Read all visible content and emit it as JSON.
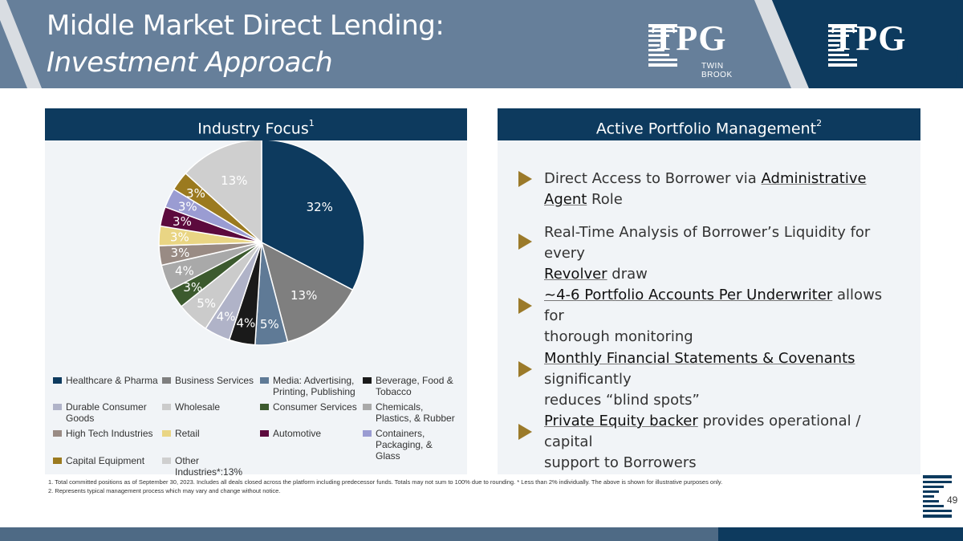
{
  "header": {
    "title_line1": "Middle Market Direct Lending:",
    "title_line2": "Investment Approach",
    "logo_left_text": "TPG",
    "logo_left_sub": "TWIN BROOK",
    "logo_right_text": "TPG"
  },
  "colors": {
    "header_bg": "#667f9a",
    "header_dark": "#0d3a5e",
    "accent_gold": "#9b7a2a",
    "panel_bg": "#f1f4f7"
  },
  "left_panel": {
    "title": "Industry Focus",
    "title_sup": "1"
  },
  "right_panel": {
    "title": "Active Portfolio Management",
    "title_sup": "2",
    "bullets": [
      {
        "pre": "Direct Access to Borrower via ",
        "hl": "Administrative Agent",
        "post": " Role",
        "line2": ""
      },
      {
        "pre": "Real-Time Analysis of Borrower’s Liquidity for every",
        "hl": "",
        "post": "",
        "line2_hl": "Revolver",
        "line2": " draw"
      },
      {
        "pre": "",
        "hl": "~4-6 Portfolio Accounts Per Underwriter",
        "post": " allows for",
        "line2_hl": "",
        "line2": "thorough monitoring"
      },
      {
        "pre": "",
        "hl": "Monthly Financial Statements & Covenants",
        "post": " significantly",
        "line2_hl": "",
        "line2": "reduces “blind spots”"
      },
      {
        "pre": "",
        "hl": "Private Equity backer",
        "post": " provides operational / capital",
        "line2_hl": "",
        "line2": "support to Borrowers"
      }
    ]
  },
  "chart_data": {
    "type": "pie",
    "start_angle_deg": 0,
    "direction": "clockwise",
    "slices": [
      {
        "label": "Healthcare & Pharma",
        "value": 32,
        "display": "32%",
        "color": "#0d3a5e",
        "label_color": "#ffffff"
      },
      {
        "label": "Business Services",
        "value": 13,
        "display": "13%",
        "color": "#7f7f7f",
        "label_color": "#ffffff"
      },
      {
        "label": "Media: Advertising, Printing, Publishing",
        "value": 5,
        "display": "5%",
        "color": "#5f7a96",
        "label_color": "#ffffff"
      },
      {
        "label": "Beverage, Food & Tobacco",
        "value": 4,
        "display": "4%",
        "color": "#1a1a1a",
        "label_color": "#ffffff"
      },
      {
        "label": "Durable Consumer Goods",
        "value": 4,
        "display": "4%",
        "color": "#b0b3c8",
        "label_color": "#ffffff"
      },
      {
        "label": "Wholesale",
        "value": 5,
        "display": "5%",
        "color": "#cbcbcb",
        "label_color": "#ffffff"
      },
      {
        "label": "Consumer Services",
        "value": 3,
        "display": "3%",
        "color": "#3c5a2e",
        "label_color": "#ffffff"
      },
      {
        "label": "Chemicals, Plastics, & Rubber",
        "value": 4,
        "display": "4%",
        "color": "#a9a9a9",
        "label_color": "#ffffff"
      },
      {
        "label": "High Tech Industries",
        "value": 3,
        "display": "3%",
        "color": "#998b84",
        "label_color": "#ffffff"
      },
      {
        "label": "Retail",
        "value": 3,
        "display": "3%",
        "color": "#e9d584",
        "label_color": "#ffffff"
      },
      {
        "label": "Automotive",
        "value": 3,
        "display": "3%",
        "color": "#5c0a3d",
        "label_color": "#ffffff"
      },
      {
        "label": "Containers, Packaging, & Glass",
        "value": 3,
        "display": "3%",
        "color": "#9a9cd2",
        "label_color": "#ffffff"
      },
      {
        "label": "Capital Equipment",
        "value": 3,
        "display": "3%",
        "color": "#9b7a1f",
        "label_color": "#ffffff"
      },
      {
        "label": "Other Industries*",
        "value": 13,
        "display": "13%",
        "color": "#cfcfcf",
        "label_color": "#ffffff"
      }
    ],
    "legend": [
      {
        "label": "Healthcare & Pharma",
        "color": "#0d3a5e"
      },
      {
        "label": "Business Services",
        "color": "#7f7f7f"
      },
      {
        "label": "Media: Advertising, Printing, Publishing",
        "color": "#5f7a96"
      },
      {
        "label": "Beverage, Food & Tobacco",
        "color": "#1a1a1a"
      },
      {
        "label": "Durable Consumer Goods",
        "color": "#b0b3c8"
      },
      {
        "label": "Wholesale",
        "color": "#cbcbcb"
      },
      {
        "label": "Consumer Services",
        "color": "#3c5a2e"
      },
      {
        "label": "Chemicals, Plastics, & Rubber",
        "color": "#a9a9a9"
      },
      {
        "label": "High Tech Industries",
        "color": "#998b84"
      },
      {
        "label": "Retail",
        "color": "#e9d584"
      },
      {
        "label": "Automotive",
        "color": "#5c0a3d"
      },
      {
        "label": "Containers, Packaging, & Glass",
        "color": "#9a9cd2"
      },
      {
        "label": "Capital Equipment",
        "color": "#9b7a1f"
      },
      {
        "label": "Other Industries*:13%",
        "color": "#cfcfcf"
      }
    ]
  },
  "footnotes": [
    "1. Total committed positions as of September 30, 2023. Includes all deals closed across the platform including predecessor funds. Totals may not sum to 100% due to rounding. * Less than 2% individually. The above is shown for illustrative purposes only.",
    "2. Represents typical management process which may vary and change without notice."
  ],
  "page_number": "49"
}
